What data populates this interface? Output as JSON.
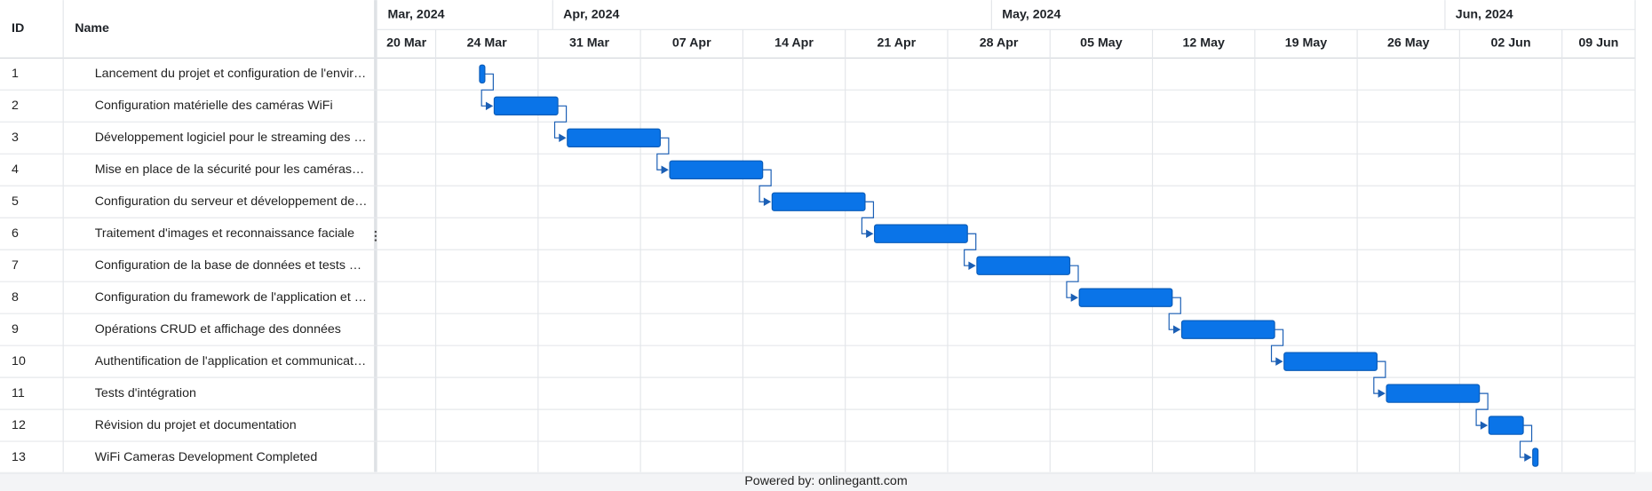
{
  "chart_data": {
    "type": "gantt",
    "columns": [
      "ID",
      "Name"
    ],
    "xlim": [
      "2024-03-20",
      "2024-06-14"
    ],
    "months": [
      {
        "value": "2024-03-20",
        "label": "Mar, 2024"
      },
      {
        "value": "2024-04-01",
        "label": "Apr, 2024"
      },
      {
        "value": "2024-05-01",
        "label": "May, 2024"
      },
      {
        "value": "2024-06-01",
        "label": "Jun, 2024"
      }
    ],
    "xticks": [
      {
        "value": "2024-03-20",
        "label": "20 Mar"
      },
      {
        "value": "2024-03-24",
        "label": "24 Mar"
      },
      {
        "value": "2024-03-31",
        "label": "31 Mar"
      },
      {
        "value": "2024-04-07",
        "label": "07 Apr"
      },
      {
        "value": "2024-04-14",
        "label": "14 Apr"
      },
      {
        "value": "2024-04-21",
        "label": "21 Apr"
      },
      {
        "value": "2024-04-28",
        "label": "28 Apr"
      },
      {
        "value": "2024-05-05",
        "label": "05 May"
      },
      {
        "value": "2024-05-12",
        "label": "12 May"
      },
      {
        "value": "2024-05-19",
        "label": "19 May"
      },
      {
        "value": "2024-05-26",
        "label": "26 May"
      },
      {
        "value": "2024-06-02",
        "label": "02 Jun"
      },
      {
        "value": "2024-06-09",
        "label": "09 Jun"
      }
    ],
    "color": "#0a74e8",
    "grid": true,
    "tasks": [
      {
        "id": 1,
        "name": "Lancement du projet et configuration de l'envir…",
        "start": "2024-03-27",
        "end": "2024-03-27"
      },
      {
        "id": 2,
        "name": "Configuration matérielle des caméras WiFi",
        "start": "2024-03-28",
        "end": "2024-04-01"
      },
      {
        "id": 3,
        "name": "Développement logiciel pour le streaming des …",
        "start": "2024-04-02",
        "end": "2024-04-08"
      },
      {
        "id": 4,
        "name": "Mise en place de la sécurité pour les caméras…",
        "start": "2024-04-09",
        "end": "2024-04-15"
      },
      {
        "id": 5,
        "name": "Configuration du serveur et développement de…",
        "start": "2024-04-16",
        "end": "2024-04-22"
      },
      {
        "id": 6,
        "name": "Traitement d'images et reconnaissance faciale",
        "start": "2024-04-23",
        "end": "2024-04-29"
      },
      {
        "id": 7,
        "name": "Configuration de la base de données et tests …",
        "start": "2024-04-30",
        "end": "2024-05-06"
      },
      {
        "id": 8,
        "name": "Configuration du framework de l'application et …",
        "start": "2024-05-07",
        "end": "2024-05-13"
      },
      {
        "id": 9,
        "name": "Opérations CRUD et affichage des données",
        "start": "2024-05-14",
        "end": "2024-05-20"
      },
      {
        "id": 10,
        "name": "Authentification de l'application et communicat…",
        "start": "2024-05-21",
        "end": "2024-05-27"
      },
      {
        "id": 11,
        "name": "Tests d'intégration",
        "start": "2024-05-28",
        "end": "2024-06-03"
      },
      {
        "id": 12,
        "name": "Révision du projet et documentation",
        "start": "2024-06-04",
        "end": "2024-06-06"
      },
      {
        "id": 13,
        "name": "WiFi Cameras Development Completed",
        "start": "2024-06-07",
        "end": "2024-06-07"
      }
    ],
    "footer": "Powered by: onlinegantt.com"
  }
}
